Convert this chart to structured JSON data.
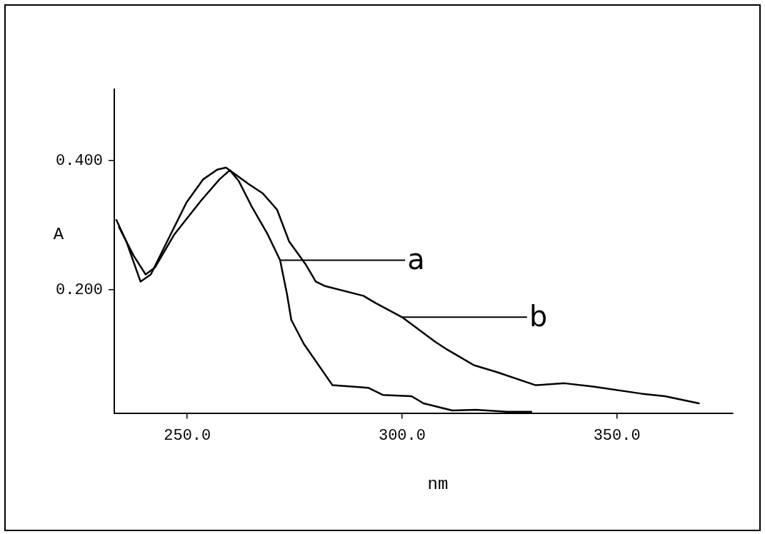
{
  "chart_data": {
    "type": "line",
    "xlabel": "nm",
    "ylabel": "A",
    "xlim": [
      233,
      377
    ],
    "ylim": [
      0.01,
      0.51
    ],
    "xticks": [
      {
        "value": 250,
        "label": "250.0"
      },
      {
        "value": 300,
        "label": "300.0"
      },
      {
        "value": 350,
        "label": "350.0"
      }
    ],
    "yticks": [
      {
        "value": 0.2,
        "label": "0.200"
      },
      {
        "value": 0.4,
        "label": "0.400"
      }
    ],
    "grid": false,
    "legend": false,
    "marker": "none",
    "line_style": "solid",
    "series": [
      {
        "color": "#000000",
        "x": [
          234.1,
          237.5,
          240.3,
          242.5,
          247.0,
          253.2,
          257.5,
          259.9,
          262.0,
          264.9,
          268.7,
          271.6,
          273.2,
          274.2,
          277.1,
          283.8,
          292.1,
          295.5,
          302.2,
          305.0,
          311.7,
          317.2,
          324.4,
          330.1
        ],
        "values": [
          0.297,
          0.253,
          0.224,
          0.235,
          0.286,
          0.338,
          0.371,
          0.385,
          0.368,
          0.33,
          0.286,
          0.246,
          0.194,
          0.154,
          0.117,
          0.053,
          0.049,
          0.038,
          0.036,
          0.025,
          0.014,
          0.015,
          0.012,
          0.012
        ]
      },
      {
        "color": "#000000",
        "x": [
          233.5,
          235.8,
          239.1,
          241.5,
          245.3,
          249.8,
          253.7,
          257.0,
          259.0,
          264.2,
          267.6,
          270.9,
          273.7,
          277.6,
          279.9,
          282.1,
          291.0,
          293.8,
          300.0,
          307.7,
          310.5,
          316.7,
          322.2,
          331.1,
          337.8,
          344.5,
          355.7,
          361.2,
          369.1
        ],
        "values": [
          0.308,
          0.275,
          0.213,
          0.224,
          0.275,
          0.335,
          0.371,
          0.386,
          0.389,
          0.364,
          0.349,
          0.324,
          0.275,
          0.239,
          0.213,
          0.206,
          0.191,
          0.18,
          0.158,
          0.12,
          0.108,
          0.084,
          0.073,
          0.053,
          0.056,
          0.051,
          0.04,
          0.036,
          0.025
        ]
      }
    ],
    "annotations": [
      "a",
      "b"
    ]
  }
}
